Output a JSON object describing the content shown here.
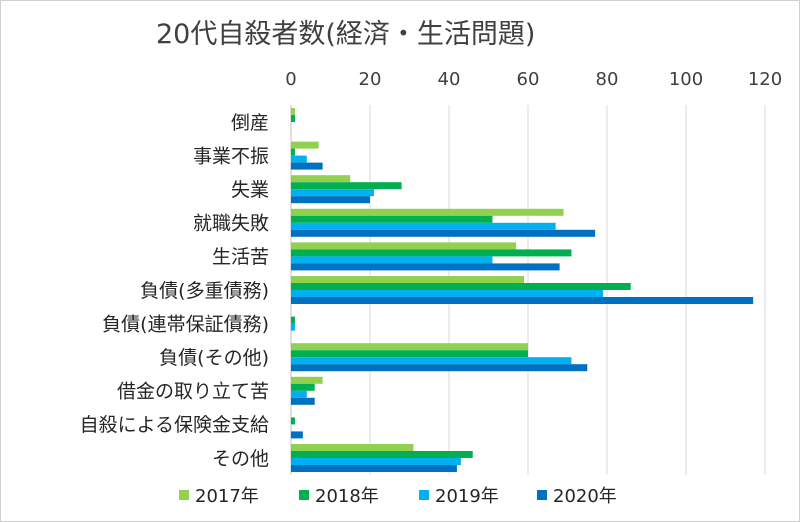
{
  "chart_data": {
    "type": "bar",
    "orientation": "horizontal",
    "title": "20代自殺者数(経済・生活問題)",
    "xlabel": "",
    "ylabel": "",
    "xlim": [
      0,
      120
    ],
    "x_ticks": [
      0,
      20,
      40,
      60,
      80,
      100,
      120
    ],
    "x_axis_position": "top",
    "grid": true,
    "legend_position": "bottom",
    "categories": [
      "倒産",
      "事業不振",
      "失業",
      "就職失敗",
      "生活苦",
      "負債(多重債務)",
      "負債(連帯保証債務)",
      "負債(その他)",
      "借金の取り立て苦",
      "自殺による保険金支給",
      "その他"
    ],
    "series": [
      {
        "name": "2017年",
        "color": "#92d050",
        "values": [
          1,
          7,
          15,
          69,
          57,
          59,
          0,
          60,
          8,
          0,
          31
        ]
      },
      {
        "name": "2018年",
        "color": "#00b050",
        "values": [
          1,
          1,
          28,
          51,
          71,
          86,
          1,
          60,
          6,
          1,
          46
        ]
      },
      {
        "name": "2019年",
        "color": "#00b0f0",
        "values": [
          0,
          4,
          21,
          67,
          51,
          79,
          1,
          71,
          4,
          0,
          43
        ]
      },
      {
        "name": "2020年",
        "color": "#0070c0",
        "values": [
          0,
          8,
          20,
          77,
          68,
          117,
          0,
          75,
          6,
          3,
          42
        ]
      }
    ]
  }
}
